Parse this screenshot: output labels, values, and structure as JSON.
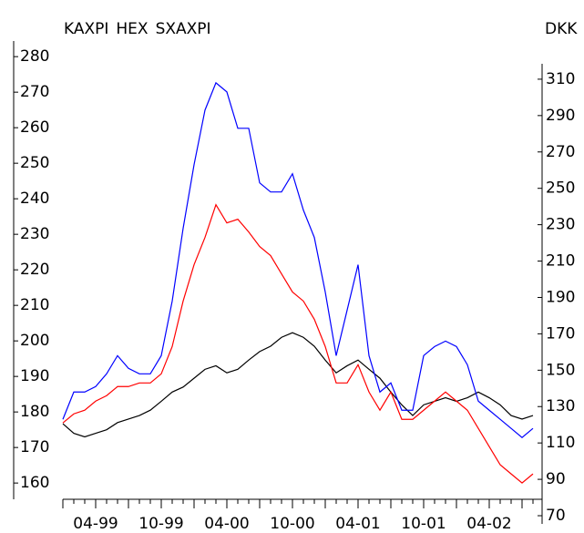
{
  "chart_data": {
    "type": "line",
    "x": [
      "01-99",
      "02-99",
      "03-99",
      "04-99",
      "05-99",
      "06-99",
      "07-99",
      "08-99",
      "09-99",
      "10-99",
      "11-99",
      "12-99",
      "01-00",
      "02-00",
      "03-00",
      "04-00",
      "05-00",
      "06-00",
      "07-00",
      "08-00",
      "09-00",
      "10-00",
      "11-00",
      "12-00",
      "01-01",
      "02-01",
      "03-01",
      "04-01",
      "05-01",
      "06-01",
      "07-01",
      "08-01",
      "09-01",
      "10-01",
      "11-01",
      "12-01",
      "01-02",
      "02-02",
      "03-02",
      "04-02",
      "05-02",
      "06-02",
      "07-02",
      "08-02"
    ],
    "xticks": [
      "04-99",
      "10-99",
      "04-00",
      "10-00",
      "04-01",
      "10-01",
      "04-02"
    ],
    "y2label": "DKK",
    "ylim": [
      148.5,
      284.4
    ],
    "yticks": [
      160,
      170,
      180,
      190,
      200,
      210,
      220,
      230,
      240,
      250,
      260,
      270,
      280
    ],
    "y2lim": [
      65.5,
      331
    ],
    "y2ticks": [
      70,
      90,
      110,
      130,
      150,
      170,
      190,
      210,
      230,
      250,
      270,
      290,
      310
    ],
    "series": [
      {
        "name": "KAXPI",
        "color": "#000000",
        "values": [
          176.7,
          174,
          173,
          174,
          175,
          177,
          178,
          179,
          180.5,
          183,
          185.6,
          187,
          189.5,
          192,
          193,
          191,
          192,
          194.6,
          197,
          198.5,
          201,
          202.3,
          201,
          198.5,
          194.6,
          191,
          193,
          194.6,
          192,
          189.5,
          185.6,
          182,
          179,
          182,
          183,
          184,
          183,
          184,
          185.6,
          184,
          182,
          179,
          178,
          179
        ]
      },
      {
        "name": "HEX",
        "color": "#0000ff",
        "axis": "y2",
        "values": [
          123,
          138,
          138,
          141,
          148,
          158,
          151,
          148,
          148,
          158,
          188,
          228,
          263,
          293,
          308,
          303,
          283,
          283,
          253,
          248,
          248,
          258,
          238,
          223,
          193,
          158,
          183,
          208,
          158,
          138,
          143,
          128,
          128,
          158,
          163,
          166,
          163,
          153,
          133,
          128,
          123,
          118,
          113,
          118
        ]
      },
      {
        "name": "SXAXPI",
        "color": "#ff0000",
        "axis": "y2",
        "values": [
          121,
          126,
          128,
          133,
          136,
          141,
          141,
          143,
          143,
          148,
          163,
          188,
          208,
          223,
          241,
          231,
          233,
          226,
          218,
          213,
          203,
          193,
          188,
          178,
          163,
          143,
          143,
          153,
          138,
          128,
          138,
          123,
          123,
          128,
          133,
          138,
          133,
          128,
          118,
          108,
          98,
          93,
          88,
          93
        ]
      }
    ]
  }
}
